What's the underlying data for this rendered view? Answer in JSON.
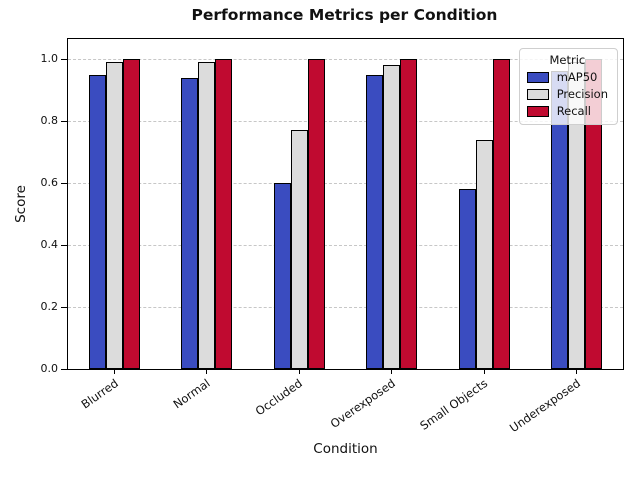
{
  "chart_data": {
    "type": "bar",
    "title": "Performance Metrics per Condition",
    "xlabel": "Condition",
    "ylabel": "Score",
    "categories": [
      "Blurred",
      "Normal",
      "Occluded",
      "Overexposed",
      "Small Objects",
      "Underexposed"
    ],
    "series": [
      {
        "name": "mAP50",
        "color": "#3A4CC0",
        "values": [
          0.95,
          0.94,
          0.6,
          0.95,
          0.58,
          0.96
        ]
      },
      {
        "name": "Precision",
        "color": "#DCDCDC",
        "values": [
          0.99,
          0.99,
          0.77,
          0.98,
          0.74,
          0.99
        ]
      },
      {
        "name": "Recall",
        "color": "#C00A30",
        "values": [
          1.0,
          1.0,
          1.0,
          1.0,
          1.0,
          1.0
        ]
      }
    ],
    "yticks": [
      "0.0",
      "0.2",
      "0.4",
      "0.6",
      "0.8",
      "1.0"
    ],
    "ylim": [
      0,
      1.06
    ],
    "grid": "horizontal-dashed",
    "legend": {
      "title": "Metric",
      "position": "upper right"
    }
  }
}
